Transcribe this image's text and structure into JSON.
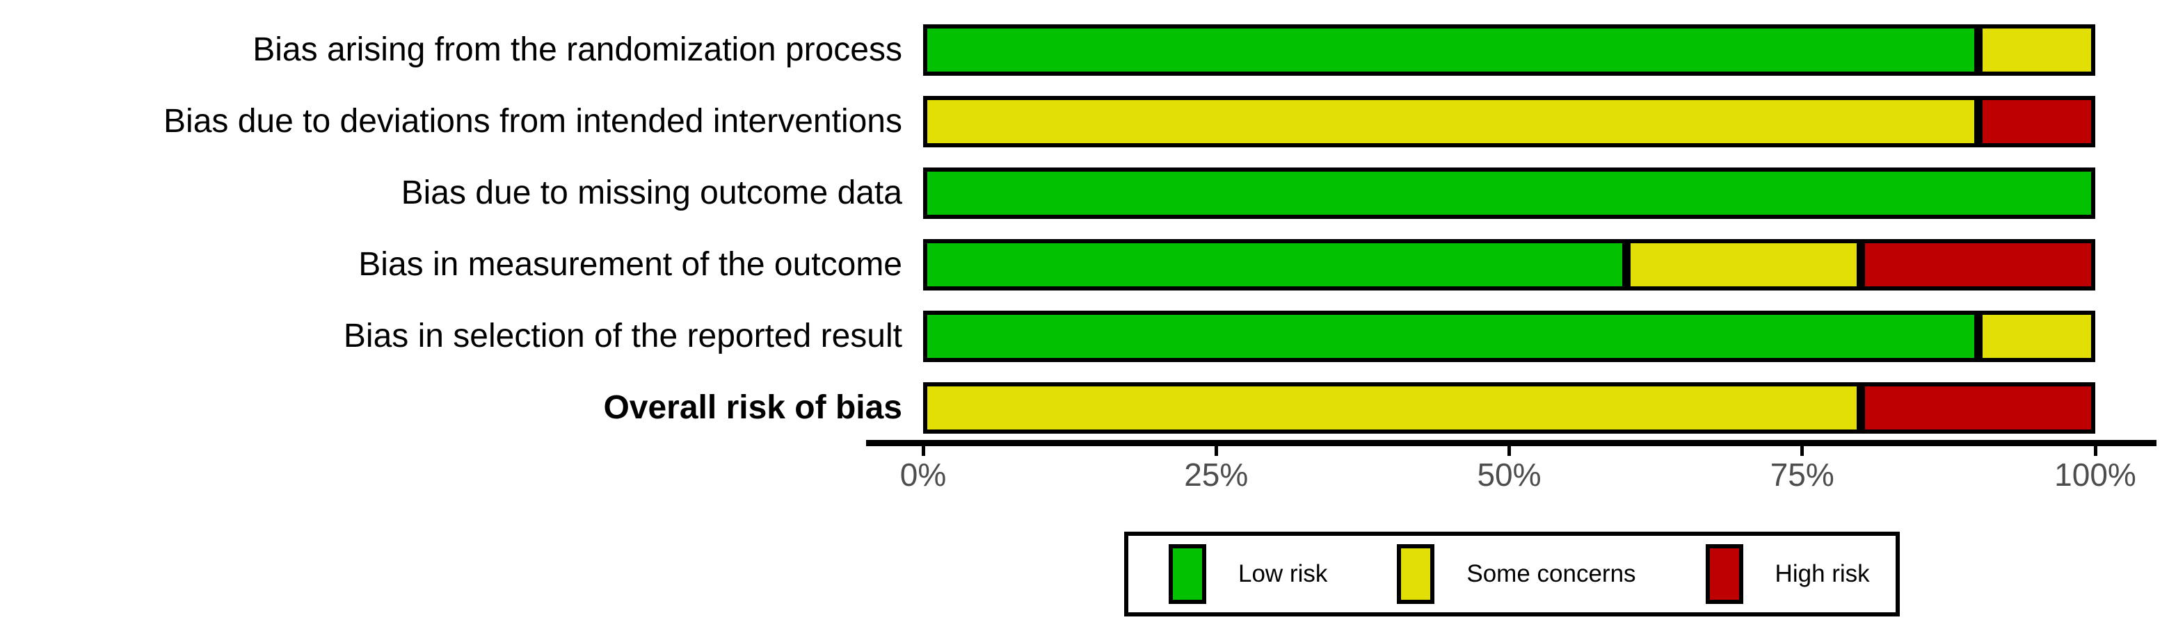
{
  "chart_data": {
    "type": "bar",
    "variant": "horizontal_stacked_percent",
    "title": "",
    "categories": [
      "Bias arising from the randomization process",
      "Bias due to deviations from intended interventions",
      "Bias due to missing outcome data",
      "Bias in measurement of the outcome",
      "Bias in selection of the reported result",
      "Overall risk of bias"
    ],
    "bold_categories": [
      "Overall risk of bias"
    ],
    "series": [
      {
        "name": "Low risk",
        "color": "#02C100",
        "values": [
          90,
          0,
          100,
          60,
          90,
          0
        ]
      },
      {
        "name": "Some concerns",
        "color": "#E2DF07",
        "values": [
          10,
          90,
          0,
          20,
          10,
          80
        ]
      },
      {
        "name": "High risk",
        "color": "#BF0000",
        "values": [
          0,
          10,
          0,
          20,
          0,
          20
        ]
      }
    ],
    "x_ticks": [
      "0%",
      "25%",
      "50%",
      "75%",
      "100%"
    ],
    "x_tick_values": [
      0,
      25,
      50,
      75,
      100
    ],
    "xlim": [
      0,
      100
    ],
    "grid": false,
    "legend_position": "bottom",
    "segment_border_color": "#000000",
    "axis_color": "#000000",
    "tick_label_color": "#4d4d4d",
    "background_color": "#ffffff"
  }
}
